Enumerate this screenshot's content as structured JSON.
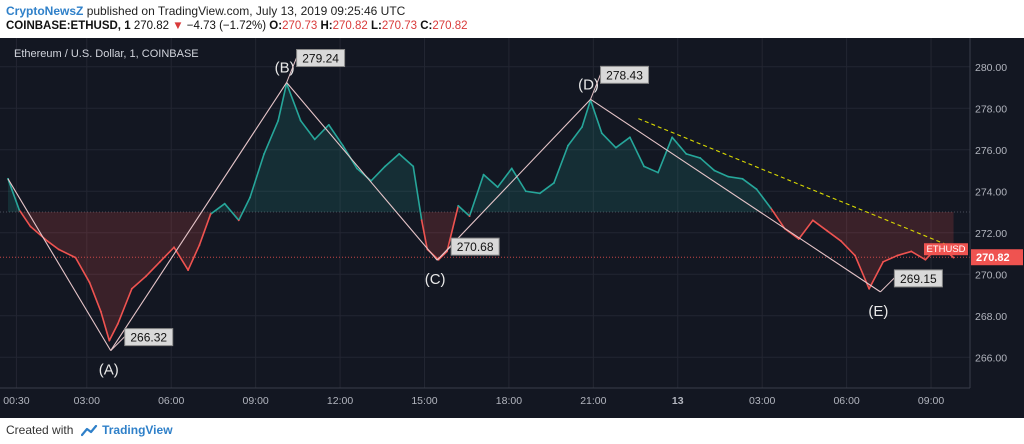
{
  "header": {
    "brand": "CryptoNewsZ",
    "published": "published on TradingView.com, July 13, 2019 09:25:46 UTC",
    "symbol": "COINBASE:ETHUSD, 1",
    "last": "270.82",
    "change": "−4.73 (−1.72%)",
    "o_label": "O:",
    "o_value": "270.73",
    "h_label": "H:",
    "h_value": "270.82",
    "l_label": "L:",
    "l_value": "270.73",
    "c_label": "C:",
    "c_value": "270.82"
  },
  "footer": {
    "created_with": "Created with",
    "tv_name": "TradingView"
  },
  "colors": {
    "background": "#131722",
    "up": "#26a69a",
    "down": "#ef5350",
    "pattern": "#e6c5c9",
    "trendline": "#d9d900"
  },
  "chart_data": {
    "type": "line",
    "title": "Ethereum / U.S. Dollar, 1, COINBASE",
    "ylim": [
      265.0,
      281.0
    ],
    "y_ticks": [
      "280.00",
      "278.00",
      "276.00",
      "274.00",
      "272.00",
      "270.00",
      "268.00",
      "266.00"
    ],
    "x_ticks": [
      "00:30",
      "03:00",
      "06:00",
      "09:00",
      "12:00",
      "15:00",
      "18:00",
      "21:00",
      "13",
      "03:00",
      "06:00",
      "09:00"
    ],
    "x_tick_hours": [
      0.5,
      3,
      6,
      9,
      12,
      15,
      18,
      21,
      24,
      27,
      30,
      33
    ],
    "x_range_hours": [
      0.2,
      34.1
    ],
    "reference_price": 273.0,
    "current_price": 270.82,
    "price_label": "270.82",
    "symbol_tag": "ETHUSD",
    "series": [
      {
        "x_hours": [
          0.2,
          0.6,
          1.0,
          1.6,
          2.0,
          2.6,
          3.1,
          3.5,
          3.8,
          4.1,
          4.6,
          5.1,
          5.6,
          6.1,
          6.6,
          7.0,
          7.4,
          7.9,
          8.4,
          8.8,
          9.3,
          9.8,
          10.1,
          10.6,
          11.1,
          11.6,
          12.1,
          12.6,
          13.1,
          13.6,
          14.1,
          14.6,
          14.9,
          15.1,
          15.5,
          15.8,
          16.2,
          16.6,
          17.1,
          17.6,
          18.1,
          18.6,
          19.1,
          19.6,
          20.1,
          20.6,
          20.9,
          21.3,
          21.8,
          22.3,
          22.8,
          23.3,
          23.8,
          24.3,
          24.8,
          25.3,
          25.8,
          26.3,
          26.8,
          27.3,
          27.8,
          28.3,
          28.8,
          29.3,
          29.8,
          30.3,
          30.8,
          31.3,
          31.8,
          32.3,
          32.8,
          33.3,
          33.8
        ],
        "values": [
          274.6,
          273.1,
          272.3,
          271.6,
          271.2,
          270.8,
          269.6,
          268.2,
          266.8,
          267.6,
          269.3,
          269.9,
          270.6,
          271.3,
          270.2,
          271.4,
          272.9,
          273.4,
          272.6,
          273.7,
          275.8,
          277.4,
          279.2,
          277.4,
          276.5,
          277.2,
          276.2,
          275.1,
          274.5,
          275.2,
          275.8,
          275.2,
          272.6,
          271.2,
          270.7,
          271.1,
          273.3,
          272.8,
          274.8,
          274.2,
          275.1,
          274.0,
          273.9,
          274.4,
          276.2,
          277.1,
          278.4,
          276.8,
          276.1,
          276.6,
          275.2,
          274.9,
          276.6,
          275.8,
          275.6,
          275.0,
          274.7,
          274.6,
          274.1,
          273.2,
          272.2,
          271.7,
          272.6,
          272.1,
          271.6,
          270.9,
          269.3,
          270.6,
          270.9,
          271.1,
          270.7,
          271.4,
          270.8
        ]
      }
    ],
    "pattern_points": [
      {
        "label": "(A)",
        "x_hours": 3.85,
        "value": 266.32,
        "price_label": "266.32",
        "label_position": "below"
      },
      {
        "label": "(B)",
        "x_hours": 10.1,
        "value": 279.24,
        "price_label": "279.24",
        "label_position": "above"
      },
      {
        "label": "(C)",
        "x_hours": 15.45,
        "value": 270.68,
        "price_label": "270.68",
        "label_position": "below"
      },
      {
        "label": "(D)",
        "x_hours": 20.9,
        "value": 278.43,
        "price_label": "278.43",
        "label_position": "above"
      },
      {
        "label": "(E)",
        "x_hours": 31.2,
        "value": 269.15,
        "price_label": "269.15",
        "label_position": "below"
      }
    ],
    "pattern_start": {
      "x_hours": 0.2,
      "value": 274.6
    },
    "trendline": {
      "x_hours": [
        22.6,
        33.6
      ],
      "values": [
        277.5,
        271.4
      ]
    }
  }
}
